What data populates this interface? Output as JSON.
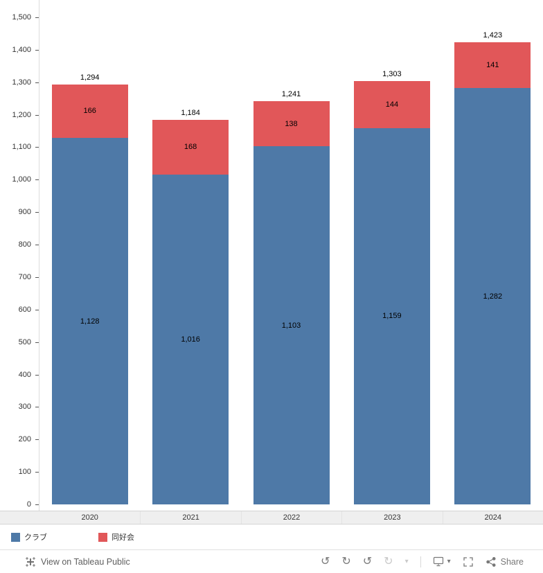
{
  "chart_data": {
    "type": "bar",
    "stacked": true,
    "categories": [
      "2020",
      "2021",
      "2022",
      "2023",
      "2024"
    ],
    "series": [
      {
        "name": "クラブ",
        "color": "#4e79a7",
        "values": [
          1128,
          1016,
          1103,
          1159,
          1282
        ]
      },
      {
        "name": "同好会",
        "color": "#e15759",
        "values": [
          166,
          168,
          138,
          144,
          141
        ]
      }
    ],
    "totals": [
      1294,
      1184,
      1241,
      1303,
      1423
    ],
    "ylim": [
      0,
      1500
    ],
    "ytick_interval": 100,
    "grid": false,
    "legend_position": "bottom-left"
  },
  "legend": {
    "items": [
      {
        "label": "クラブ",
        "color": "#4e79a7"
      },
      {
        "label": "同好会",
        "color": "#e15759"
      }
    ]
  },
  "toolbar": {
    "view_on_label": "View on Tableau Public",
    "share_label": "Share",
    "icons": [
      "undo",
      "redo",
      "reset",
      "replay",
      "speed-dropdown",
      "device-layout",
      "fullscreen",
      "share"
    ]
  },
  "colors": {
    "bar_blue": "#4e79a7",
    "bar_red": "#e15759",
    "axis_band": "#efefef"
  }
}
